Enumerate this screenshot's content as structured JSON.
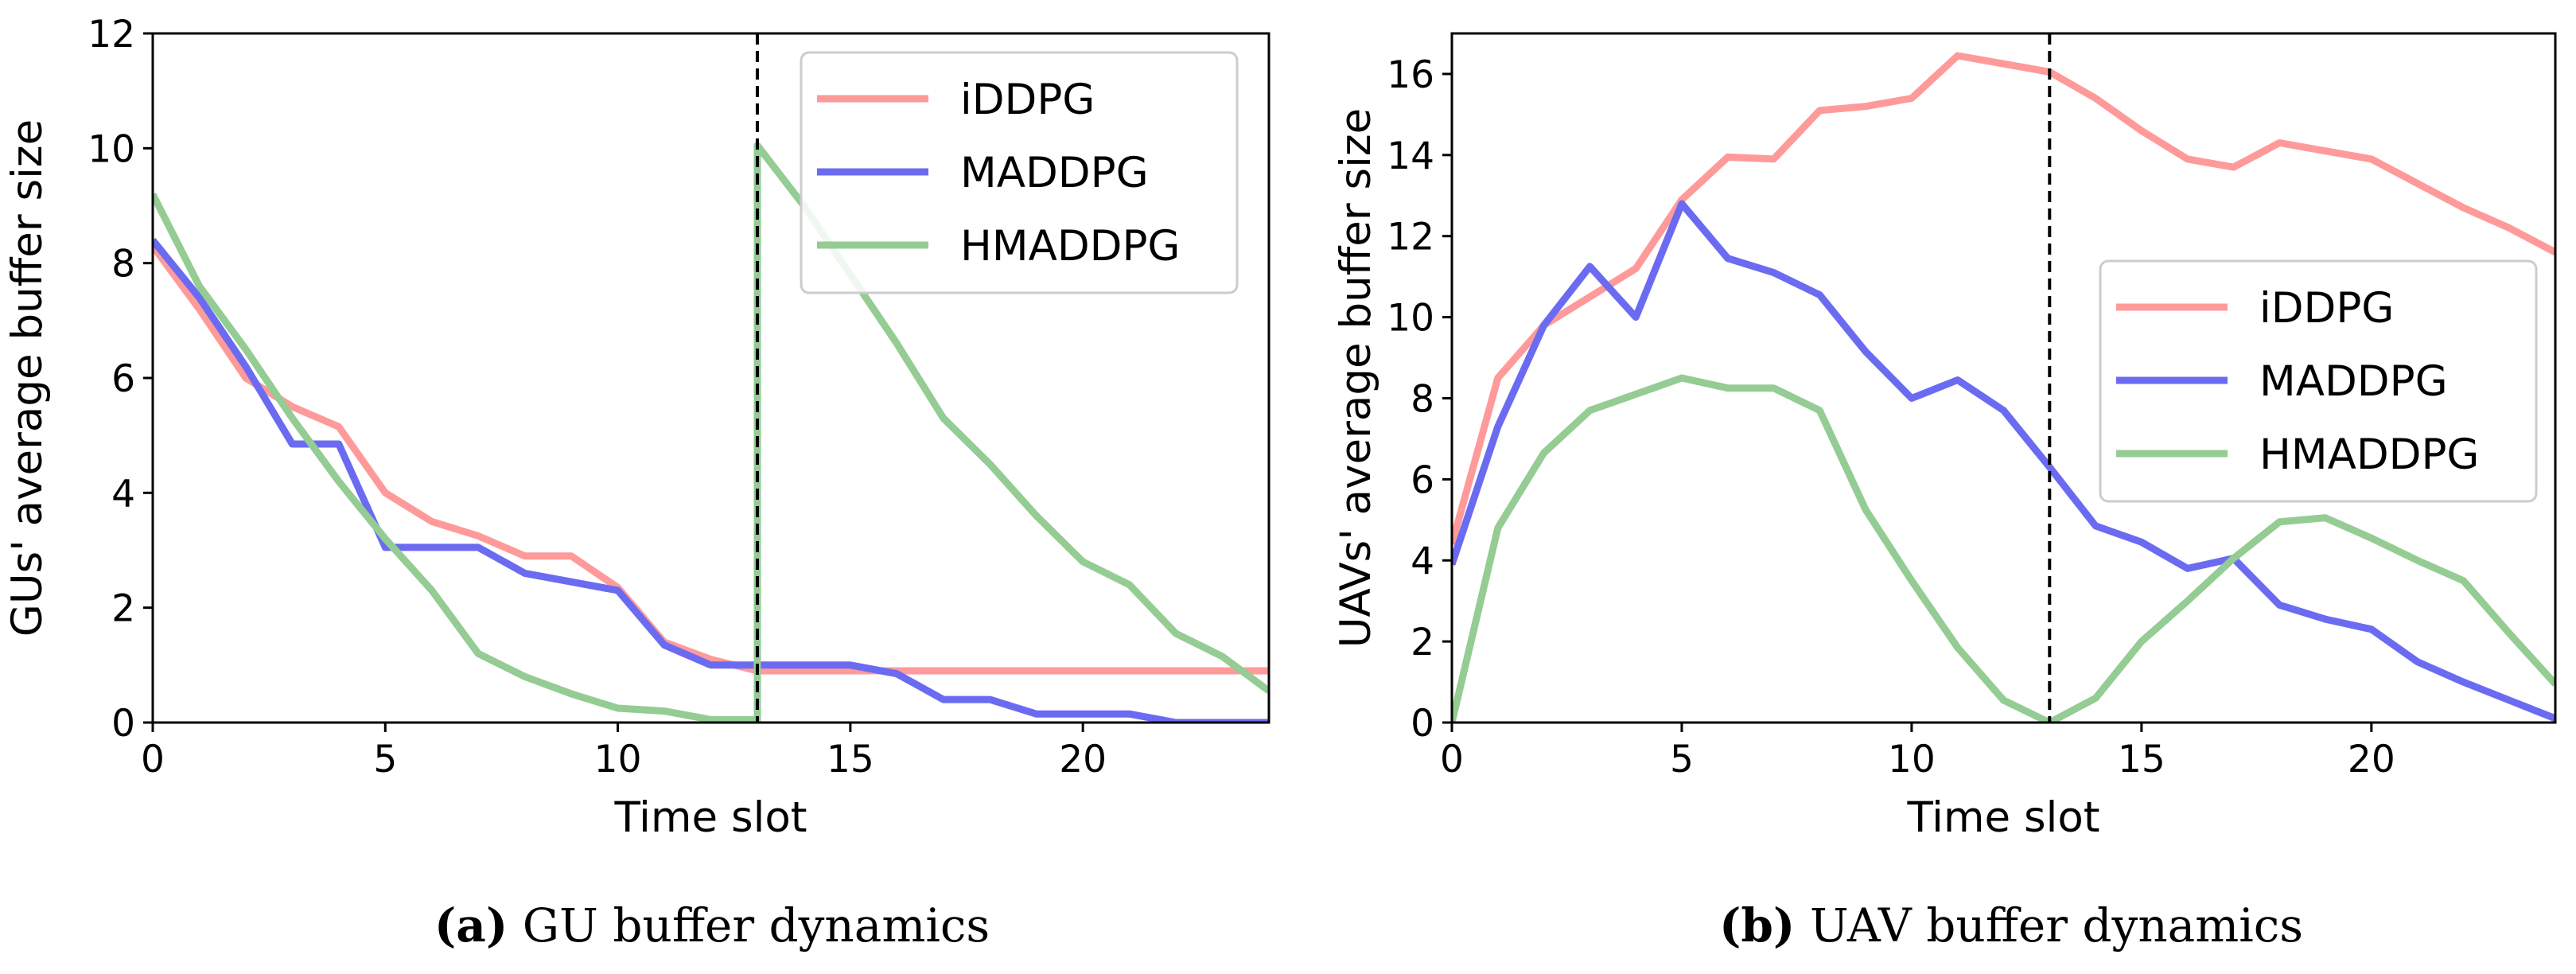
{
  "colors": {
    "iDDPG": "#ff9a9a",
    "MADDPG": "#6b6bf2",
    "HMADDPG": "#94cc94"
  },
  "chart_data": [
    {
      "type": "line",
      "id": "a",
      "caption_letter": "(a)",
      "caption_text": "GU buffer dynamics",
      "xlabel": "Time slot",
      "ylabel": "GUs' average buffer size",
      "xlim": [
        0,
        24
      ],
      "ylim": [
        0,
        12
      ],
      "xticks": [
        0,
        5,
        10,
        15,
        20
      ],
      "yticks": [
        0,
        2,
        4,
        6,
        8,
        10,
        12
      ],
      "vline_x": 13,
      "legend_position": "top-right",
      "series": [
        {
          "name": "iDDPG",
          "x": [
            0,
            1,
            2,
            3,
            4,
            5,
            6,
            7,
            8,
            9,
            10,
            11,
            12,
            13,
            14,
            15,
            16,
            17,
            18,
            19,
            20,
            21,
            22,
            23,
            24
          ],
          "y": [
            8.3,
            7.2,
            6.0,
            5.5,
            5.15,
            4.0,
            3.5,
            3.25,
            2.9,
            2.9,
            2.35,
            1.4,
            1.1,
            0.9,
            0.9,
            0.9,
            0.9,
            0.9,
            0.9,
            0.9,
            0.9,
            0.9,
            0.9,
            0.9,
            0.9
          ]
        },
        {
          "name": "MADDPG",
          "x": [
            0,
            1,
            2,
            3,
            4,
            5,
            6,
            7,
            8,
            9,
            10,
            11,
            12,
            13,
            14,
            15,
            16,
            17,
            18,
            19,
            20,
            21,
            22,
            23,
            24
          ],
          "y": [
            8.4,
            7.4,
            6.2,
            4.85,
            4.85,
            3.05,
            3.05,
            3.05,
            2.6,
            2.45,
            2.3,
            1.35,
            1.0,
            1.0,
            1.0,
            1.0,
            0.85,
            0.4,
            0.4,
            0.15,
            0.15,
            0.15,
            0.0,
            0.0,
            0.0
          ]
        },
        {
          "name": "HMADDPG",
          "x": [
            0,
            1,
            2,
            3,
            4,
            5,
            6,
            7,
            8,
            9,
            10,
            11,
            12,
            13,
            13,
            14,
            15,
            16,
            17,
            18,
            19,
            20,
            21,
            22,
            23,
            24
          ],
          "y": [
            9.2,
            7.6,
            6.5,
            5.3,
            4.2,
            3.2,
            2.3,
            1.2,
            0.8,
            0.5,
            0.25,
            0.2,
            0.05,
            0.05,
            10.05,
            9.0,
            7.8,
            6.6,
            5.3,
            4.5,
            3.6,
            2.8,
            2.4,
            1.55,
            1.15,
            0.55
          ]
        }
      ]
    },
    {
      "type": "line",
      "id": "b",
      "caption_letter": "(b)",
      "caption_text": "UAV buffer dynamics",
      "xlabel": "Time slot",
      "ylabel": "UAVs' average buffer size",
      "xlim": [
        0,
        24
      ],
      "ylim": [
        0,
        17
      ],
      "xticks": [
        0,
        5,
        10,
        15,
        20
      ],
      "yticks": [
        0,
        2,
        4,
        6,
        8,
        10,
        12,
        14,
        16
      ],
      "vline_x": 13,
      "legend_position": "center-right",
      "series": [
        {
          "name": "iDDPG",
          "x": [
            0,
            1,
            2,
            3,
            4,
            5,
            6,
            7,
            8,
            9,
            10,
            11,
            12,
            13,
            14,
            15,
            16,
            17,
            18,
            19,
            20,
            21,
            22,
            23,
            24
          ],
          "y": [
            4.4,
            8.5,
            9.8,
            10.5,
            11.2,
            12.9,
            13.95,
            13.9,
            15.1,
            15.2,
            15.4,
            16.45,
            16.25,
            16.05,
            15.4,
            14.6,
            13.9,
            13.7,
            14.3,
            14.1,
            13.9,
            13.3,
            12.7,
            12.2,
            11.6
          ]
        },
        {
          "name": "MADDPG",
          "x": [
            0,
            1,
            2,
            3,
            4,
            5,
            6,
            7,
            8,
            9,
            10,
            11,
            12,
            13,
            14,
            15,
            16,
            17,
            18,
            19,
            20,
            21,
            22,
            23,
            24
          ],
          "y": [
            3.9,
            7.3,
            9.8,
            11.25,
            10.0,
            12.8,
            11.45,
            11.1,
            10.55,
            9.15,
            8.0,
            8.45,
            7.7,
            6.3,
            4.85,
            4.45,
            3.8,
            4.05,
            2.9,
            2.55,
            2.3,
            1.5,
            1.0,
            0.55,
            0.1
          ]
        },
        {
          "name": "HMADDPG",
          "x": [
            0,
            1,
            2,
            3,
            4,
            5,
            6,
            7,
            8,
            9,
            10,
            11,
            12,
            13,
            14,
            15,
            16,
            17,
            18,
            19,
            20,
            21,
            22,
            23,
            24
          ],
          "y": [
            0.0,
            4.8,
            6.65,
            7.7,
            8.1,
            8.5,
            8.25,
            8.25,
            7.7,
            5.25,
            3.5,
            1.85,
            0.55,
            0.0,
            0.6,
            2.0,
            3.0,
            4.05,
            4.95,
            5.05,
            4.55,
            4.0,
            3.5,
            2.2,
            0.95
          ]
        }
      ]
    }
  ]
}
